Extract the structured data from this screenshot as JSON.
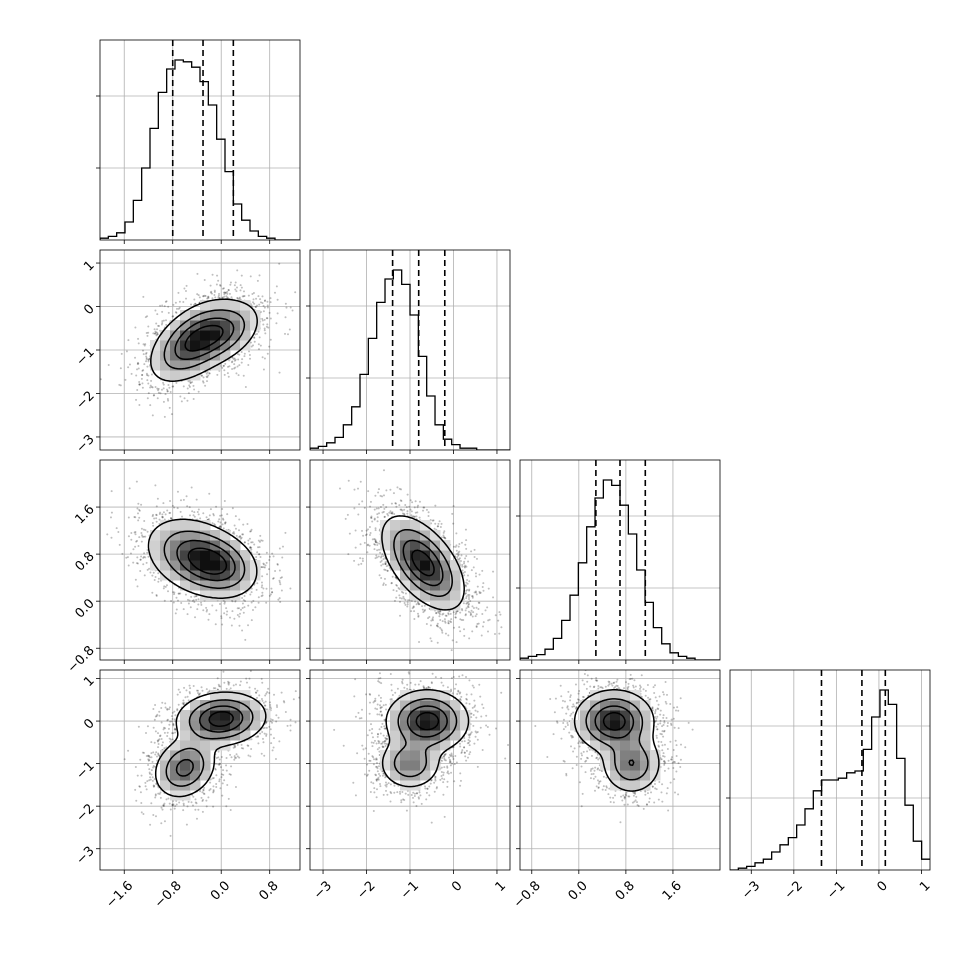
{
  "chart_data": {
    "type": "corner",
    "parameters": 4,
    "axes": [
      {
        "range": [
          -2.0,
          1.3
        ],
        "ticks": [
          -1.6,
          -0.8,
          0.0,
          0.8
        ],
        "tick_labels": [
          "−1.6",
          "−0.8",
          "0.0",
          "0.8"
        ]
      },
      {
        "range": [
          -3.3,
          1.3
        ],
        "ticks": [
          -3,
          -2,
          -1,
          0,
          1
        ],
        "tick_labels": [
          "−3",
          "−2",
          "−1",
          "0",
          "1"
        ]
      },
      {
        "range": [
          -1.0,
          2.4
        ],
        "ticks": [
          -0.8,
          0.0,
          0.8,
          1.6
        ],
        "tick_labels": [
          "−0.8",
          "0.0",
          "0.8",
          "1.6"
        ]
      },
      {
        "range": [
          -3.5,
          1.2
        ],
        "ticks": [
          -3,
          -2,
          -1,
          0,
          1
        ],
        "tick_labels": [
          "−3",
          "−2",
          "−1",
          "0",
          "1"
        ]
      }
    ],
    "histograms": [
      {
        "param": 0,
        "bins": {
          "start": -2.0,
          "width": 0.1375,
          "counts": [
            1,
            2,
            4,
            10,
            22,
            40,
            62,
            82,
            95,
            100,
            99,
            96,
            88,
            75,
            56,
            38,
            20,
            11,
            5,
            2,
            1,
            0,
            0,
            0
          ]
        },
        "quantiles": [
          -0.8,
          -0.3,
          0.2
        ]
      },
      {
        "param": 1,
        "bins": {
          "start": -3.3,
          "width": 0.1917,
          "counts": [
            1,
            2,
            4,
            7,
            14,
            24,
            42,
            62,
            82,
            95,
            100,
            92,
            75,
            52,
            30,
            14,
            6,
            3,
            1,
            1,
            0,
            0,
            0,
            0
          ]
        },
        "quantiles": [
          -1.4,
          -0.8,
          -0.2
        ]
      },
      {
        "param": 2,
        "bins": {
          "start": -1.0,
          "width": 0.1417,
          "counts": [
            1,
            2,
            3,
            6,
            12,
            22,
            36,
            54,
            74,
            90,
            100,
            97,
            86,
            70,
            50,
            32,
            18,
            9,
            4,
            2,
            1,
            0,
            0,
            0
          ]
        },
        "quantiles": [
          0.29,
          0.7,
          1.13
        ]
      },
      {
        "param": 3,
        "bins": {
          "start": -3.5,
          "width": 0.1958,
          "counts": [
            0,
            1,
            2,
            4,
            6,
            10,
            14,
            18,
            25,
            34,
            44,
            50,
            50,
            51,
            54,
            55,
            67,
            85,
            100,
            92,
            62,
            36,
            16,
            6
          ]
        },
        "quantiles": [
          -1.35,
          -0.4,
          0.15
        ]
      }
    ],
    "pairs": [
      {
        "x": 0,
        "y": 1,
        "modes": [
          {
            "mx": -0.45,
            "my": -0.8,
            "sx": 0.35,
            "sy": 0.45,
            "r": 0.5,
            "w": 1.0
          },
          {
            "mx": 0.05,
            "my": -0.6,
            "sx": 0.3,
            "sy": 0.35,
            "r": 0.4,
            "w": 0.6
          }
        ]
      },
      {
        "x": 0,
        "y": 2,
        "modes": [
          {
            "mx": -0.4,
            "my": 0.75,
            "sx": 0.4,
            "sy": 0.32,
            "r": -0.3,
            "w": 1.0
          },
          {
            "mx": 0.0,
            "my": 0.6,
            "sx": 0.3,
            "sy": 0.25,
            "r": -0.2,
            "w": 0.6
          }
        ]
      },
      {
        "x": 1,
        "y": 2,
        "modes": [
          {
            "mx": -0.7,
            "my": 0.65,
            "sx": 0.45,
            "sy": 0.38,
            "r": -0.55,
            "w": 1.0
          }
        ]
      },
      {
        "x": 0,
        "y": 3,
        "modes": [
          {
            "mx": 0.0,
            "my": 0.05,
            "sx": 0.35,
            "sy": 0.3,
            "r": 0.1,
            "w": 1.0
          },
          {
            "mx": -0.6,
            "my": -1.1,
            "sx": 0.25,
            "sy": 0.35,
            "r": 0.2,
            "w": 0.7
          }
        ]
      },
      {
        "x": 1,
        "y": 3,
        "modes": [
          {
            "mx": -0.6,
            "my": 0.0,
            "sx": 0.45,
            "sy": 0.35,
            "r": 0.0,
            "w": 1.0
          },
          {
            "mx": -1.0,
            "my": -1.0,
            "sx": 0.35,
            "sy": 0.3,
            "r": 0.0,
            "w": 0.55
          }
        ]
      },
      {
        "x": 2,
        "y": 3,
        "modes": [
          {
            "mx": 0.6,
            "my": 0.0,
            "sx": 0.32,
            "sy": 0.35,
            "r": 0.0,
            "w": 1.0
          },
          {
            "mx": 0.9,
            "my": -1.0,
            "sx": 0.25,
            "sy": 0.35,
            "r": 0.0,
            "w": 0.6
          }
        ]
      }
    ],
    "contour_levels": [
      0.85,
      0.6,
      0.33,
      0.11
    ],
    "grid": true,
    "title": "",
    "legend": ""
  }
}
